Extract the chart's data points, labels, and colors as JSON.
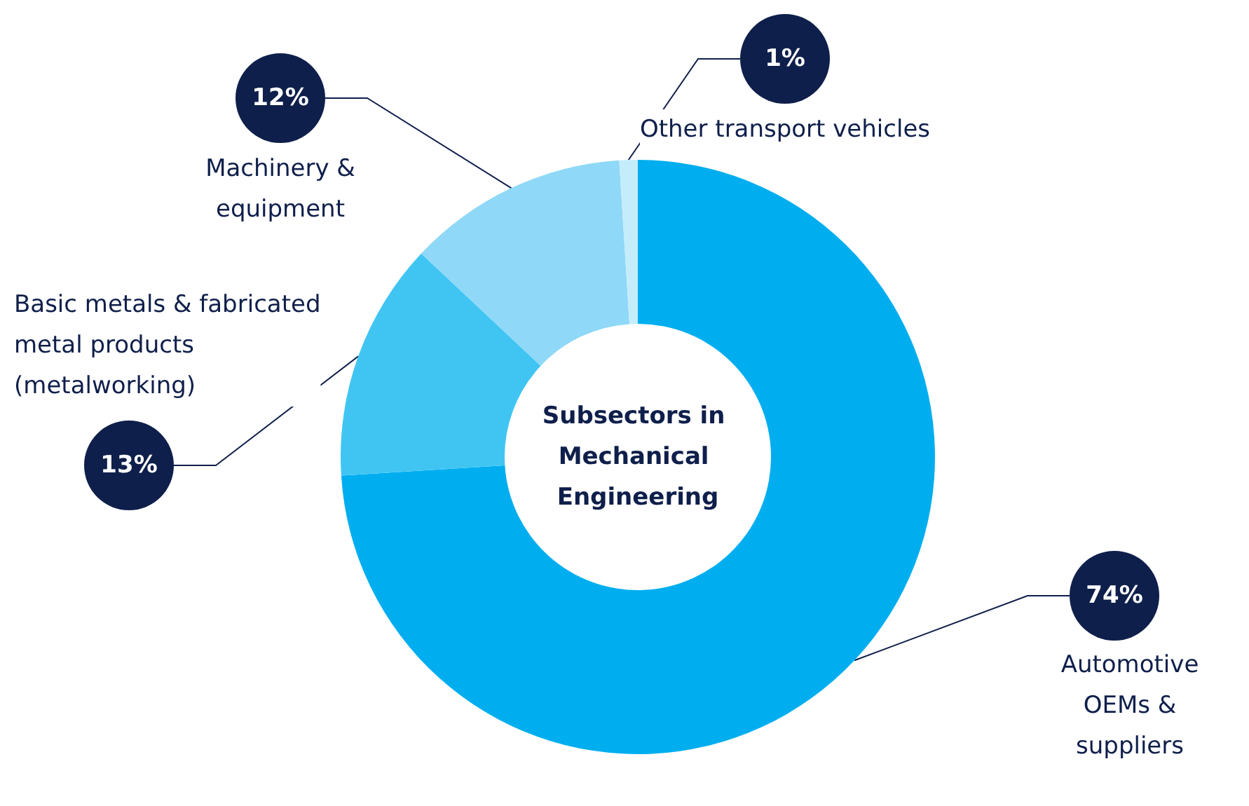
{
  "chart_data": {
    "type": "donut",
    "title": "Subsectors in Mechanical Engineering",
    "categories": [
      "Automotive OEMs & suppliers",
      "Basic metals & fabricated metal products (metalworking)",
      "Machinery & equipment",
      "Other transport vehicles"
    ],
    "values": [
      74,
      13,
      12,
      1
    ],
    "value_labels": [
      "74%",
      "13%",
      "12%",
      "1%"
    ],
    "colors": [
      "#00aeef",
      "#40c5f3",
      "#8fd8f7",
      "#c4ecfb"
    ],
    "legend": false
  }
}
